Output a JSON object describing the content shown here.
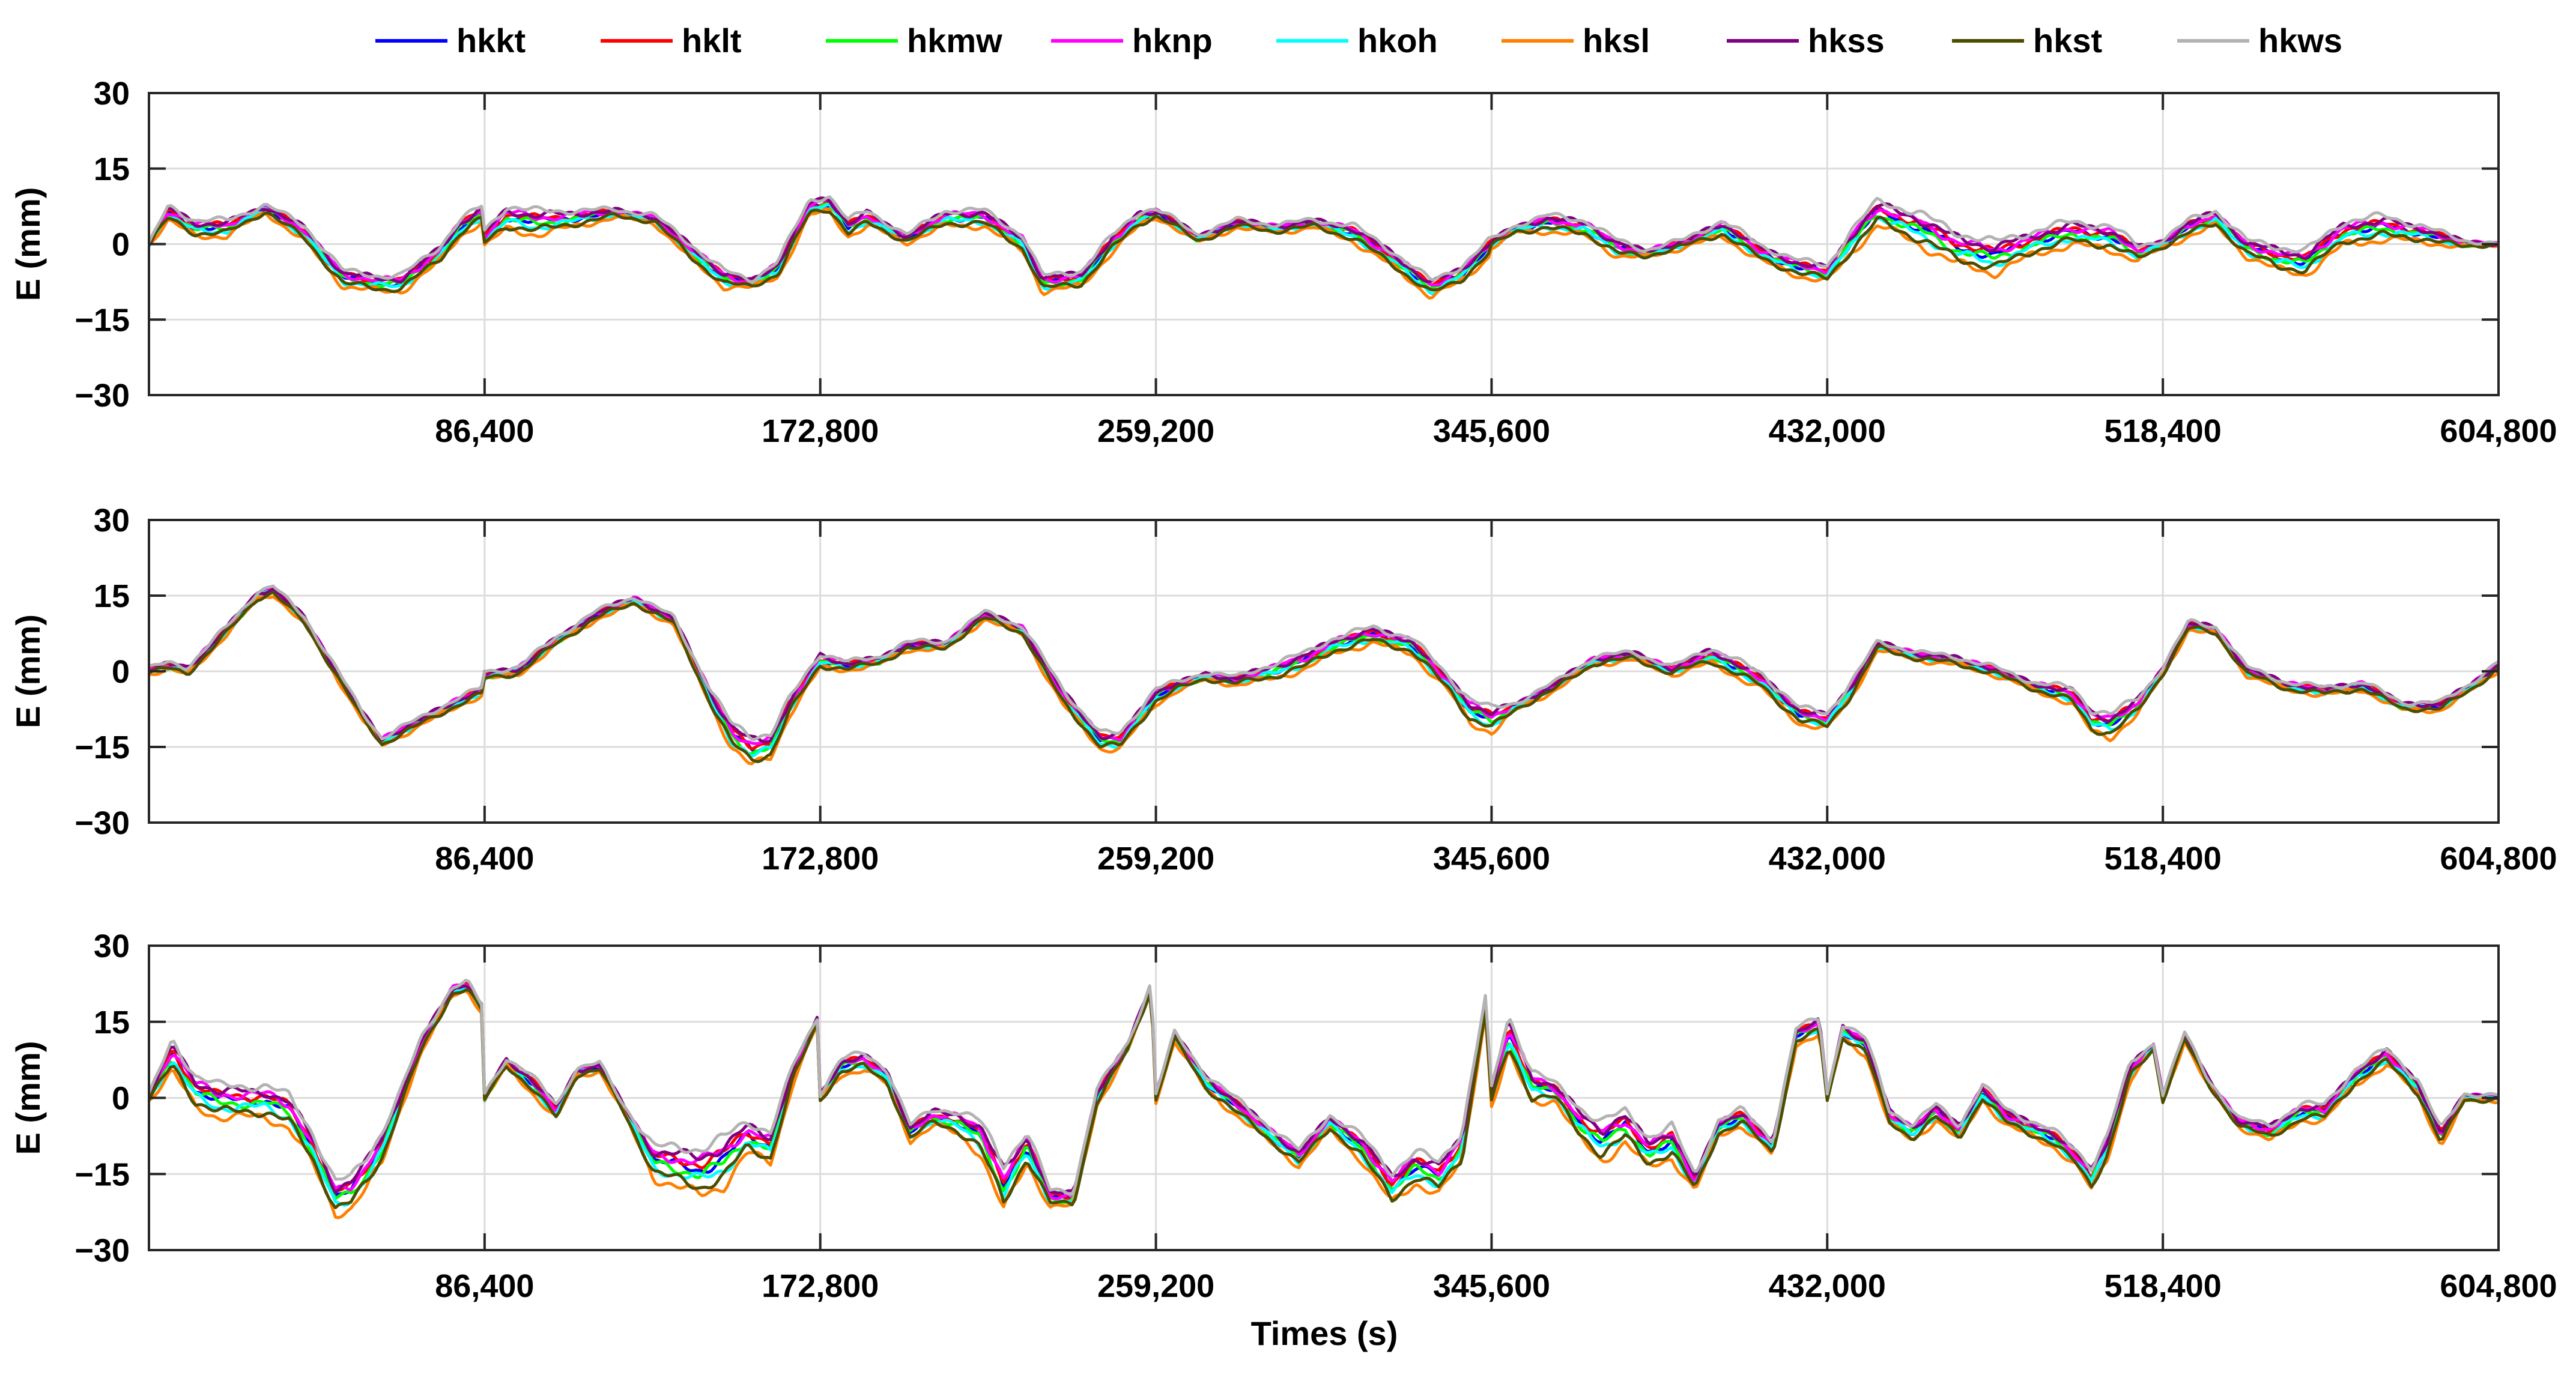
{
  "chart_data": {
    "type": "line",
    "legend": {
      "placement": "top",
      "entries": [
        {
          "name": "hkkt",
          "color": "#0000ff"
        },
        {
          "name": "hklt",
          "color": "#ff0000"
        },
        {
          "name": "hkmw",
          "color": "#00ff00"
        },
        {
          "name": "hknp",
          "color": "#ff00ff"
        },
        {
          "name": "hkoh",
          "color": "#00ffff"
        },
        {
          "name": "hksl",
          "color": "#ff8000"
        },
        {
          "name": "hkss",
          "color": "#800080"
        },
        {
          "name": "hkst",
          "color": "#4d4d00"
        },
        {
          "name": "hkws",
          "color": "#b3b3b3"
        }
      ]
    },
    "xlabel": "Times (s)",
    "xlim": [
      0,
      604800
    ],
    "xticks": [
      86400,
      172800,
      259200,
      345600,
      432000,
      518400,
      604800
    ],
    "xtick_labels": [
      "86,400",
      "172,800",
      "259,200",
      "345,600",
      "432,000",
      "518,400",
      "604,800"
    ],
    "panels": [
      {
        "ylabel": "E (mm)",
        "ylim": [
          -30,
          30
        ],
        "yticks": [
          30,
          15,
          0,
          -15,
          -30
        ],
        "ytick_labels": [
          "30",
          "15",
          "0",
          "−15",
          "−30"
        ],
        "grid": true,
        "base_x": [
          0,
          5000,
          12000,
          20000,
          30000,
          40000,
          50000,
          60000,
          65000,
          70000,
          75000,
          80000,
          86000,
          86400,
          92000,
          100000,
          110000,
          120000,
          130000,
          140000,
          148000,
          155000,
          162000,
          170000,
          175000,
          180000,
          185000,
          195000,
          205000,
          215000,
          225000,
          230000,
          240000,
          248000,
          255000,
          259200,
          262000,
          270000,
          280000,
          290000,
          300000,
          310000,
          320000,
          330000,
          338000,
          345000,
          345600,
          352000,
          360000,
          370000,
          378000,
          385000,
          395000,
          405000,
          415000,
          425000,
          432000,
          438000,
          445000,
          455000,
          465000,
          475000,
          485000,
          495000,
          505000,
          512000,
          518400,
          525000,
          532000,
          540000,
          548000,
          555000,
          565000,
          575000,
          585000,
          595000,
          604800
        ],
        "base_y": [
          0,
          6,
          3,
          3,
          7,
          2,
          -7,
          -8,
          -8,
          -5,
          -2,
          3,
          6,
          1,
          5,
          4,
          5,
          6,
          5,
          -2,
          -7,
          -8,
          -5,
          7,
          8,
          3,
          5,
          1,
          5,
          5,
          0,
          -8,
          -7,
          0,
          5,
          6,
          5,
          1,
          4,
          3,
          4,
          2,
          -3,
          -9,
          -6,
          -1,
          0,
          3,
          4,
          3,
          -1,
          -2,
          0,
          3,
          -2,
          -5,
          -6,
          0,
          6,
          3,
          -1,
          -3,
          0,
          2,
          1,
          -2,
          0,
          3,
          5,
          -1,
          -3,
          -4,
          2,
          3,
          2,
          0,
          0
        ],
        "amp": [
          0,
          1,
          1,
          1,
          0.5,
          1,
          1,
          1,
          1,
          1,
          1,
          1,
          1,
          1,
          1.5,
          1.5,
          1,
          0.5,
          0.5,
          1,
          1,
          0.5,
          1,
          1,
          1,
          1,
          1,
          0.5,
          1,
          1,
          1,
          1,
          1,
          1,
          1,
          0.5,
          0.5,
          0.5,
          0.5,
          0.5,
          0.5,
          1,
          1,
          1,
          1,
          1,
          0.5,
          0.5,
          1,
          1,
          1,
          0.5,
          0.5,
          1,
          1,
          1,
          1,
          1.5,
          1.5,
          2,
          2,
          2,
          1.5,
          1.5,
          1.5,
          1,
          0.5,
          1,
          1,
          1,
          1.5,
          1.5,
          1.5,
          1.5,
          1,
          0.5,
          0
        ],
        "series_offsets": [
          0.2,
          0.5,
          0.0,
          0.6,
          -0.3,
          -1.0,
          0.8,
          -0.6,
          1.2
        ]
      },
      {
        "ylabel": "E (mm)",
        "ylim": [
          -30,
          30
        ],
        "yticks": [
          30,
          15,
          0,
          -15,
          -30
        ],
        "ytick_labels": [
          "30",
          "15",
          "0",
          "−15",
          "−30"
        ],
        "grid": true,
        "base_x": [
          0,
          5000,
          10000,
          20000,
          28000,
          32000,
          40000,
          48000,
          55000,
          60000,
          70000,
          80000,
          86000,
          86400,
          95000,
          105000,
          115000,
          125000,
          135000,
          145000,
          150000,
          155000,
          160000,
          165000,
          172800,
          180000,
          188000,
          195000,
          205000,
          215000,
          225000,
          235000,
          245000,
          250000,
          259200,
          265000,
          272000,
          280000,
          290000,
          298000,
          305000,
          315000,
          325000,
          335000,
          340000,
          345600,
          352000,
          362000,
          372000,
          382000,
          392000,
          402000,
          415000,
          425000,
          432000,
          438000,
          445000,
          455000,
          465000,
          475000,
          485000,
          495000,
          500000,
          505000,
          512000,
          518400,
          525000,
          532000,
          540000,
          550000,
          560000,
          570000,
          580000,
          590000,
          598000,
          604800
        ],
        "base_y": [
          0,
          1,
          0,
          8,
          15,
          16,
          10,
          0,
          -9,
          -14,
          -10,
          -6,
          -4,
          -1,
          0,
          6,
          11,
          14,
          10,
          -6,
          -13,
          -16,
          -15,
          -7,
          2,
          1,
          2,
          5,
          5,
          11,
          8,
          -5,
          -14,
          -14,
          -5,
          -3,
          -1,
          -2,
          0,
          2,
          5,
          7,
          5,
          -3,
          -8,
          -10,
          -7,
          -3,
          2,
          3,
          0,
          3,
          -2,
          -9,
          -10,
          -4,
          5,
          3,
          2,
          0,
          -3,
          -5,
          -10,
          -11,
          -7,
          0,
          9,
          8,
          0,
          -3,
          -4,
          -3,
          -7,
          -7,
          -3,
          1
        ],
        "amp": [
          0.3,
          0.5,
          0.5,
          0.5,
          0.5,
          0.5,
          0.5,
          0.5,
          0.5,
          0.5,
          0.5,
          0.5,
          0.5,
          0.5,
          0.5,
          0.5,
          0.5,
          0.5,
          0.5,
          1,
          1.5,
          2,
          1.5,
          1,
          1,
          0.5,
          0.5,
          0.5,
          0.5,
          0.5,
          0.5,
          1,
          1,
          1,
          1,
          0.5,
          0.5,
          0.5,
          1,
          1,
          1,
          1,
          1,
          1,
          1.5,
          1.5,
          0.5,
          0.5,
          0.5,
          0.5,
          0.5,
          1,
          1,
          1,
          1,
          1,
          0.5,
          0.5,
          0.5,
          0.5,
          0.5,
          1,
          1.5,
          1.5,
          1,
          0.5,
          0.5,
          0.5,
          0.5,
          0.5,
          0.5,
          0.5,
          0.5,
          0.5,
          0.5,
          0.5
        ],
        "series_offsets": [
          0.2,
          0.5,
          0.0,
          0.6,
          -0.3,
          -1.0,
          0.8,
          -0.6,
          1.2
        ]
      },
      {
        "ylabel": "E (mm)",
        "ylim": [
          -30,
          30
        ],
        "yticks": [
          30,
          15,
          0,
          -15,
          -30
        ],
        "ytick_labels": [
          "30",
          "15",
          "0",
          "−15",
          "−30"
        ],
        "grid": true,
        "base_x": [
          0,
          6000,
          12000,
          18000,
          24000,
          30000,
          36000,
          42000,
          48000,
          52000,
          56000,
          60000,
          65000,
          70000,
          78000,
          82000,
          86000,
          86400,
          92000,
          98000,
          105000,
          110000,
          116000,
          122000,
          130000,
          136000,
          142000,
          148000,
          154000,
          160000,
          166000,
          172000,
          172800,
          178000,
          184000,
          190000,
          196000,
          202000,
          208000,
          214000,
          220000,
          226000,
          232000,
          238000,
          244000,
          252000,
          258000,
          259200,
          264000,
          272000,
          280000,
          288000,
          296000,
          304000,
          312000,
          320000,
          326000,
          332000,
          338000,
          344000,
          345600,
          350000,
          356000,
          362000,
          368000,
          374000,
          380000,
          386000,
          392000,
          398000,
          404000,
          410000,
          418000,
          424000,
          430000,
          432000,
          436000,
          442000,
          448000,
          454000,
          460000,
          466000,
          472000,
          478000,
          484000,
          490000,
          496000,
          500000,
          504000,
          510000,
          516000,
          518400,
          524000,
          530000,
          538000,
          546000,
          554000,
          560000,
          568000,
          576000,
          584000,
          590000,
          596000,
          604800
        ],
        "base_y": [
          0,
          8,
          1,
          -1,
          -1,
          -1,
          -3,
          -10,
          -20,
          -19,
          -15,
          -10,
          0,
          10,
          21,
          22,
          17,
          0,
          7,
          3,
          -3,
          5,
          6,
          -2,
          -13,
          -14,
          -15,
          -13,
          -8,
          -10,
          5,
          15,
          0,
          6,
          7,
          4,
          -7,
          -4,
          -5,
          -8,
          -18,
          -10,
          -20,
          -20,
          0,
          10,
          22,
          0,
          12,
          3,
          -2,
          -7,
          -12,
          -5,
          -10,
          -18,
          -14,
          -16,
          -10,
          18,
          0,
          12,
          2,
          1,
          -5,
          -9,
          -6,
          -11,
          -9,
          -17,
          -6,
          -4,
          -10,
          12,
          14,
          0,
          13,
          10,
          -4,
          -7,
          -3,
          -7,
          1,
          -4,
          -6,
          -8,
          -12,
          -16,
          -10,
          5,
          10,
          0,
          12,
          3,
          -5,
          -7,
          -3,
          -3,
          4,
          8,
          2,
          -8,
          0,
          0
        ],
        "amp": [
          0.3,
          2,
          2,
          2,
          2,
          2,
          2,
          2,
          2,
          2,
          2,
          2,
          1,
          1,
          0.5,
          0.5,
          0.5,
          0.5,
          0.5,
          1,
          1,
          0.5,
          0.5,
          0.5,
          2,
          2.5,
          3,
          3,
          2,
          2,
          1,
          0.5,
          0.5,
          1,
          1,
          1,
          1,
          1,
          1.5,
          2,
          3,
          2,
          1,
          1,
          1,
          0.5,
          0.5,
          0.5,
          0.5,
          1,
          1,
          1,
          1,
          1,
          1.5,
          2,
          2,
          2,
          2,
          1,
          1,
          2.5,
          2,
          1,
          2,
          2.5,
          2,
          2,
          2,
          1,
          1,
          1,
          1,
          1,
          1,
          0.5,
          1,
          1,
          1,
          1,
          1,
          1,
          1,
          1,
          1,
          1,
          1,
          1.5,
          1.5,
          1,
          0.5,
          0.5,
          0.5,
          0.5,
          0.5,
          1,
          1,
          1,
          1,
          1,
          1,
          1,
          0.5,
          0.3
        ],
        "series_offsets": [
          0.2,
          0.5,
          0.0,
          0.6,
          -0.3,
          -1.0,
          0.8,
          -0.6,
          1.2
        ]
      }
    ]
  }
}
